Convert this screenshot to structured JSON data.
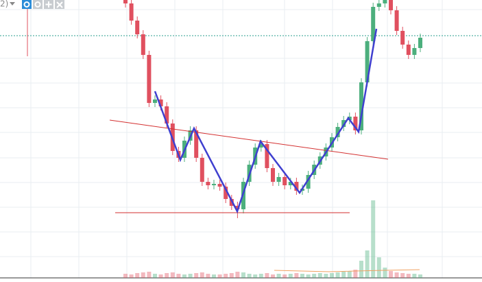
{
  "chart_data": {
    "type": "candlestick",
    "toolbar_label": "2)",
    "ylim": [
      0,
      411
    ],
    "up_color": "#4caf7d",
    "down_color": "#e0505f",
    "open": [
      411,
      406,
      381,
      361,
      331,
      261,
      266,
      256,
      231,
      191,
      181,
      206,
      221,
      181,
      146,
      141,
      143,
      139,
      121,
      111,
      106,
      146,
      171,
      196,
      201,
      166,
      146,
      153,
      141,
      146,
      133,
      136,
      156,
      171,
      183,
      196,
      211,
      226,
      236,
      241,
      221,
      291,
      351,
      401,
      406,
      411,
      396,
      366,
      346,
      331,
      341
    ],
    "high": [
      417,
      412,
      387,
      367,
      337,
      272,
      272,
      262,
      237,
      197,
      212,
      227,
      227,
      187,
      152,
      149,
      149,
      145,
      127,
      117,
      152,
      177,
      202,
      207,
      207,
      172,
      159,
      159,
      152,
      152,
      142,
      162,
      177,
      189,
      202,
      217,
      232,
      242,
      247,
      247,
      297,
      357,
      407,
      412,
      417,
      417,
      402,
      372,
      352,
      347,
      362
    ],
    "low": [
      400,
      375,
      355,
      325,
      255,
      255,
      250,
      225,
      185,
      175,
      175,
      200,
      175,
      140,
      135,
      135,
      133,
      115,
      105,
      93,
      100,
      140,
      165,
      190,
      160,
      140,
      140,
      135,
      135,
      127,
      127,
      130,
      150,
      165,
      177,
      190,
      205,
      220,
      230,
      215,
      215,
      285,
      345,
      395,
      400,
      390,
      360,
      340,
      325,
      325,
      335
    ],
    "close": [
      406,
      381,
      361,
      331,
      261,
      266,
      256,
      231,
      191,
      181,
      206,
      221,
      181,
      146,
      141,
      143,
      139,
      121,
      111,
      106,
      146,
      171,
      196,
      201,
      166,
      146,
      153,
      141,
      146,
      133,
      136,
      156,
      171,
      183,
      196,
      211,
      226,
      236,
      241,
      221,
      291,
      351,
      401,
      406,
      411,
      396,
      366,
      346,
      331,
      341,
      356
    ],
    "volume": [
      6,
      5,
      7,
      8,
      9,
      6,
      5,
      7,
      8,
      6,
      5,
      6,
      7,
      8,
      6,
      5,
      5,
      6,
      7,
      9,
      8,
      6,
      5,
      6,
      7,
      5,
      6,
      5,
      6,
      7,
      6,
      5,
      6,
      7,
      6,
      7,
      8,
      9,
      10,
      12,
      25,
      40,
      113,
      30,
      15,
      10,
      8,
      7,
      6,
      6,
      5
    ]
  }
}
